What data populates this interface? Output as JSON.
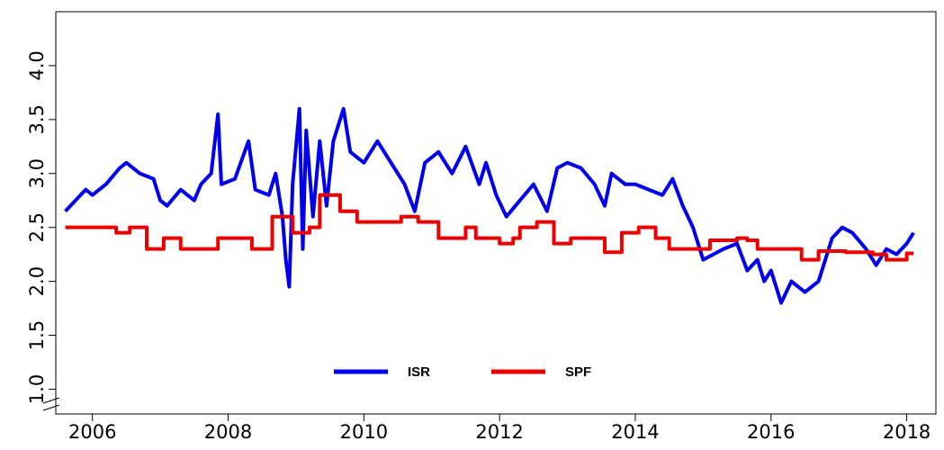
{
  "chart_data": {
    "type": "line",
    "xlim": [
      2005.46,
      2018.43
    ],
    "xticks": [
      2006,
      2008,
      2010,
      2012,
      2014,
      2016,
      2018
    ],
    "ylim": [
      0.77,
      4.5
    ],
    "yticks": [
      {
        "value": 1,
        "label": "1.0"
      },
      {
        "value": 1.5,
        "label": "1.5"
      },
      {
        "value": 2,
        "label": "2.0"
      },
      {
        "value": 2.5,
        "label": "2.5"
      },
      {
        "value": 3,
        "label": "3.0"
      },
      {
        "value": 3.5,
        "label": "3.5"
      },
      {
        "value": 4,
        "label": "4.0"
      }
    ],
    "axis_break": true,
    "legend": "bottom-center",
    "series": [
      {
        "name": "ISR",
        "color": "#0000ee",
        "step": false,
        "x": [
          2005.6,
          2005.75,
          2005.9,
          2006.0,
          2006.2,
          2006.4,
          2006.5,
          2006.7,
          2006.9,
          2007.0,
          2007.1,
          2007.3,
          2007.5,
          2007.6,
          2007.75,
          2007.85,
          2007.9,
          2008.1,
          2008.3,
          2008.4,
          2008.6,
          2008.7,
          2008.8,
          2008.85,
          2008.9,
          2008.95,
          2009.05,
          2009.1,
          2009.15,
          2009.25,
          2009.35,
          2009.45,
          2009.55,
          2009.7,
          2009.8,
          2010.0,
          2010.2,
          2010.4,
          2010.6,
          2010.75,
          2010.9,
          2011.1,
          2011.3,
          2011.5,
          2011.7,
          2011.8,
          2011.95,
          2012.1,
          2012.3,
          2012.5,
          2012.7,
          2012.85,
          2013.0,
          2013.2,
          2013.4,
          2013.55,
          2013.65,
          2013.85,
          2014.0,
          2014.2,
          2014.4,
          2014.55,
          2014.7,
          2014.85,
          2015.0,
          2015.15,
          2015.3,
          2015.5,
          2015.65,
          2015.8,
          2015.9,
          2016.0,
          2016.15,
          2016.3,
          2016.5,
          2016.7,
          2016.9,
          2017.05,
          2017.2,
          2017.4,
          2017.55,
          2017.7,
          2017.85,
          2018.0,
          2018.1
        ],
        "values": [
          2.65,
          2.75,
          2.85,
          2.8,
          2.9,
          3.05,
          3.1,
          3.0,
          2.95,
          2.75,
          2.7,
          2.85,
          2.75,
          2.9,
          3.0,
          3.55,
          2.9,
          2.95,
          3.3,
          2.85,
          2.8,
          3.0,
          2.6,
          2.2,
          1.95,
          2.9,
          3.6,
          2.3,
          3.4,
          2.6,
          3.3,
          2.7,
          3.3,
          3.6,
          3.2,
          3.1,
          3.3,
          3.1,
          2.9,
          2.65,
          3.1,
          3.2,
          3.0,
          3.25,
          2.9,
          3.1,
          2.8,
          2.6,
          2.75,
          2.9,
          2.65,
          3.05,
          3.1,
          3.05,
          2.9,
          2.7,
          3.0,
          2.9,
          2.9,
          2.85,
          2.8,
          2.95,
          2.7,
          2.5,
          2.2,
          2.25,
          2.3,
          2.35,
          2.1,
          2.2,
          2.0,
          2.1,
          1.8,
          2.0,
          1.9,
          2.0,
          2.4,
          2.5,
          2.45,
          2.3,
          2.15,
          2.3,
          2.25,
          2.35,
          2.45
        ]
      },
      {
        "name": "SPF",
        "color": "#ee0000",
        "step": true,
        "x": [
          2005.6,
          2006.35,
          2006.55,
          2006.8,
          2007.05,
          2007.3,
          2007.85,
          2008.35,
          2008.65,
          2008.95,
          2009.2,
          2009.35,
          2009.65,
          2009.9,
          2010.55,
          2010.8,
          2011.1,
          2011.5,
          2011.65,
          2012.0,
          2012.2,
          2012.3,
          2012.55,
          2012.8,
          2013.05,
          2013.55,
          2013.8,
          2014.05,
          2014.3,
          2014.5,
          2015.1,
          2015.5,
          2015.65,
          2015.8,
          2016.45,
          2016.7,
          2017.1,
          2017.5,
          2017.7,
          2018.0,
          2018.1
        ],
        "values": [
          2.5,
          2.45,
          2.5,
          2.3,
          2.4,
          2.3,
          2.4,
          2.3,
          2.6,
          2.45,
          2.5,
          2.8,
          2.65,
          2.55,
          2.6,
          2.55,
          2.4,
          2.5,
          2.4,
          2.35,
          2.4,
          2.5,
          2.55,
          2.35,
          2.4,
          2.27,
          2.45,
          2.5,
          2.4,
          2.3,
          2.38,
          2.4,
          2.38,
          2.3,
          2.2,
          2.28,
          2.27,
          2.25,
          2.2,
          2.26,
          2.26
        ]
      }
    ]
  }
}
